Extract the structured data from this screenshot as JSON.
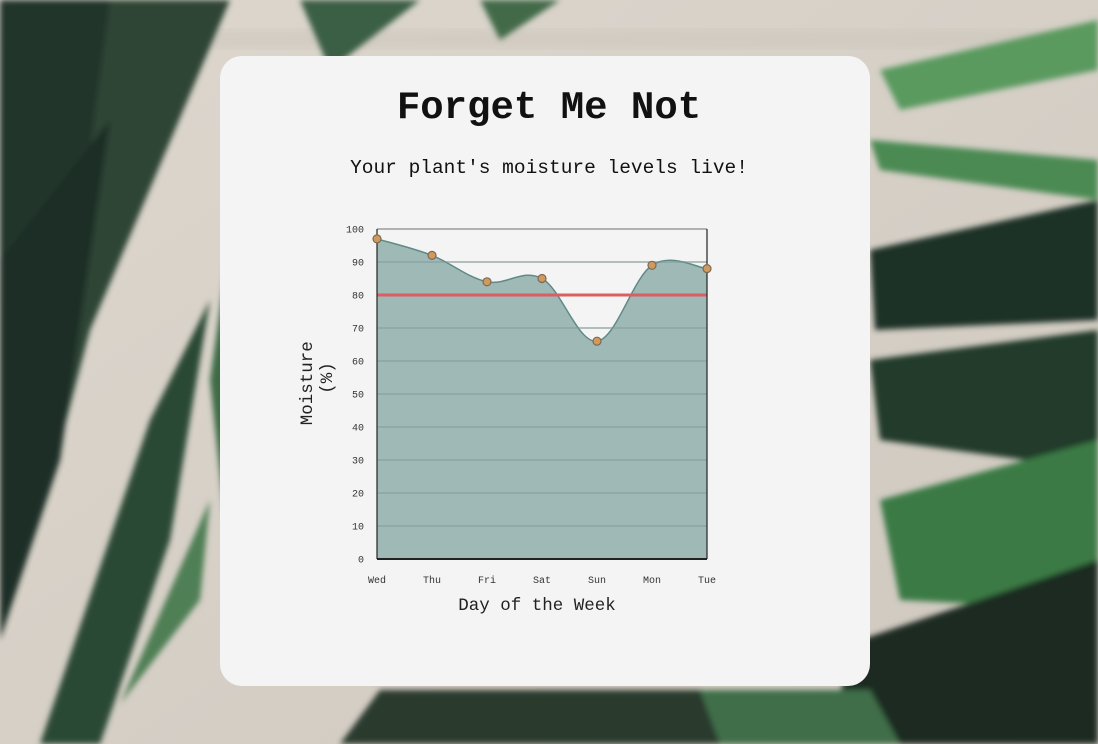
{
  "header": {
    "title": "Forget Me Not",
    "subtitle": "Your plant's moisture levels live!"
  },
  "colors": {
    "card": "#f4f4f4",
    "area_fill": "#9ab5b3",
    "area_line": "#5f8a86",
    "point_fill": "#d09a5c",
    "point_stroke": "#7a6a55",
    "threshold": "#d86060",
    "grid": "#dcdcdc",
    "leaf_dark": "#24352a",
    "leaf_green": "#3f7d46"
  },
  "chart_data": {
    "type": "area",
    "categories": [
      "Wed",
      "Thu",
      "Fri",
      "Sat",
      "Sun",
      "Mon",
      "Tue"
    ],
    "series": [
      {
        "values": [
          97,
          92,
          84,
          85,
          66,
          89,
          88
        ]
      }
    ],
    "threshold": 80,
    "xlabel": "Day of the Week",
    "ylabel_lines": [
      "Moisture",
      "(%)"
    ],
    "ylim": [
      0,
      100
    ],
    "yticks": [
      "0",
      "10",
      "20",
      "30",
      "40",
      "50",
      "60",
      "70",
      "80",
      "90",
      "100"
    ],
    "grid": true,
    "smooth": true
  }
}
